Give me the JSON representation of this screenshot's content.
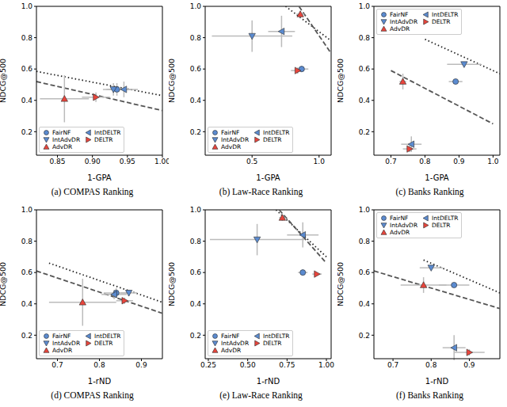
{
  "chart_data": [
    {
      "type": "scatter",
      "title": "(a) COMPAS Ranking",
      "x_label": "1-GPA",
      "y_label": "NDCG@500",
      "xlim": [
        0.82,
        1.0
      ],
      "xticks": [
        0.85,
        {
          "value": 0.9,
          "label": "0.90"
        },
        0.95,
        {
          "value": 1.0,
          "label": "1.00"
        }
      ],
      "ylim": [
        0.05,
        1.0
      ],
      "yticks": [
        0.2,
        0.4,
        0.6,
        0.8,
        {
          "value": 1.0,
          "label": "1.0"
        }
      ],
      "legend": "lower left",
      "series": [
        {
          "name": "FairNF",
          "color": "#5b8bd0",
          "marker": "circle",
          "points": [
            {
              "x": 0.935,
              "y": 0.47,
              "x_err": 0.02,
              "y_err": 0.04
            }
          ]
        },
        {
          "name": "IntAdvDR",
          "color": "#5b8bd0",
          "marker": "triangle_down",
          "points": [
            {
              "x": 0.93,
              "y": 0.47,
              "x_err": 0.01,
              "y_err": 0.04
            }
          ]
        },
        {
          "name": "AdvDR",
          "color": "#e8453c",
          "marker": "triangle_up",
          "points": [
            {
              "x": 0.86,
              "y": 0.41,
              "x_err": 0.035,
              "y_err": 0.15
            }
          ]
        },
        {
          "name": "IntDELTR",
          "color": "#5b8bd0",
          "marker": "triangle_left",
          "points": [
            {
              "x": 0.945,
              "y": 0.47,
              "x_err": 0.02,
              "y_err": 0.05
            }
          ]
        },
        {
          "name": "DELTR",
          "color": "#e8453c",
          "marker": "triangle_right",
          "points": [
            {
              "x": 0.905,
              "y": 0.42,
              "x_err": 0.02,
              "y_err": 0.03
            }
          ]
        }
      ],
      "lines": [
        {
          "line_style": "dotted",
          "color": "#222222",
          "x": [
            0.82,
            1.0
          ],
          "y": [
            0.585,
            0.43
          ]
        },
        {
          "line_style": "dashed",
          "color": "#555555",
          "x": [
            0.82,
            1.0
          ],
          "y": [
            0.52,
            0.335
          ]
        }
      ]
    },
    {
      "type": "scatter",
      "title": "(b) Law-Race Ranking",
      "x_label": "1-GPA",
      "y_label": "NDCG@500",
      "xlim": [
        0.15,
        1.09
      ],
      "xticks": [
        0.5,
        {
          "value": 1.0,
          "label": "1.0"
        }
      ],
      "ylim": [
        0.05,
        1.0
      ],
      "yticks": [
        0.2,
        0.4,
        0.6,
        0.8,
        {
          "value": 1.0,
          "label": "1.0"
        }
      ],
      "legend": "lower left",
      "series": [
        {
          "name": "FairNF",
          "color": "#5b8bd0",
          "marker": "circle",
          "points": [
            {
              "x": 0.87,
              "y": 0.6,
              "x_err": 0.05,
              "y_err": 0.02
            }
          ]
        },
        {
          "name": "IntAdvDR",
          "color": "#5b8bd0",
          "marker": "triangle_down",
          "points": [
            {
              "x": 0.5,
              "y": 0.81,
              "x_err": 0.3,
              "y_err": 0.1
            }
          ]
        },
        {
          "name": "AdvDR",
          "color": "#e8453c",
          "marker": "triangle_up",
          "points": [
            {
              "x": 0.86,
              "y": 0.95,
              "x_err": 0.03,
              "y_err": 0.02
            }
          ]
        },
        {
          "name": "IntDELTR",
          "color": "#5b8bd0",
          "marker": "triangle_left",
          "points": [
            {
              "x": 0.72,
              "y": 0.84,
              "x_err": 0.1,
              "y_err": 0.1
            }
          ]
        },
        {
          "name": "DELTR",
          "color": "#e8453c",
          "marker": "triangle_right",
          "points": [
            {
              "x": 0.84,
              "y": 0.59,
              "x_err": 0.05,
              "y_err": 0.02
            }
          ]
        }
      ],
      "lines": [
        {
          "line_style": "dotted",
          "color": "#222222",
          "x": [
            0.75,
            1.09
          ],
          "y": [
            1.0,
            0.78
          ]
        },
        {
          "line_style": "dashed",
          "color": "#555555",
          "x": [
            0.85,
            1.09
          ],
          "y": [
            1.0,
            0.7
          ]
        }
      ]
    },
    {
      "type": "scatter",
      "title": "(c) Banks Ranking",
      "x_label": "1-GPA",
      "y_label": "NDCG@500",
      "xlim": [
        0.65,
        1.02
      ],
      "xticks": [
        0.7,
        0.8,
        0.9,
        {
          "value": 1.0,
          "label": "1.0"
        }
      ],
      "ylim": [
        0.05,
        1.0
      ],
      "yticks": [
        0.2,
        0.4,
        0.6,
        0.8,
        {
          "value": 1.0,
          "label": "1.0"
        }
      ],
      "legend": "upper left",
      "series": [
        {
          "name": "FairNF",
          "color": "#5b8bd0",
          "marker": "circle",
          "points": [
            {
              "x": 0.89,
              "y": 0.52,
              "x_err": 0.02,
              "y_err": 0.01
            }
          ]
        },
        {
          "name": "IntAdvDR",
          "color": "#5b8bd0",
          "marker": "triangle_down",
          "points": [
            {
              "x": 0.915,
              "y": 0.63,
              "x_err": 0.05,
              "y_err": 0.01
            }
          ]
        },
        {
          "name": "AdvDR",
          "color": "#e8453c",
          "marker": "triangle_up",
          "points": [
            {
              "x": 0.735,
              "y": 0.52,
              "x_err": 0.01,
              "y_err": 0.05
            }
          ]
        },
        {
          "name": "IntDELTR",
          "color": "#5b8bd0",
          "marker": "triangle_left",
          "points": [
            {
              "x": 0.76,
              "y": 0.12,
              "x_err": 0.03,
              "y_err": 0.05
            }
          ]
        },
        {
          "name": "DELTR",
          "color": "#e8453c",
          "marker": "triangle_right",
          "points": [
            {
              "x": 0.755,
              "y": 0.09,
              "x_err": 0.02,
              "y_err": 0.02
            }
          ]
        }
      ],
      "lines": [
        {
          "line_style": "dotted",
          "color": "#222222",
          "x": [
            0.8,
            1.02
          ],
          "y": [
            0.79,
            0.57
          ]
        },
        {
          "line_style": "dashed",
          "color": "#555555",
          "x": [
            0.7,
            1.0
          ],
          "y": [
            0.59,
            0.25
          ]
        }
      ]
    },
    {
      "type": "scatter",
      "title": "(d) COMPAS Ranking",
      "x_label": "1-rND",
      "y_label": "NDCG@500",
      "xlim": [
        0.65,
        0.95
      ],
      "xticks": [
        0.7,
        0.8,
        0.9
      ],
      "ylim": [
        0.05,
        1.0
      ],
      "yticks": [
        0.2,
        0.4,
        0.6,
        0.8,
        {
          "value": 1.0,
          "label": "1.0"
        }
      ],
      "legend": "lower left",
      "series": [
        {
          "name": "FairNF",
          "color": "#5b8bd0",
          "marker": "circle",
          "points": [
            {
              "x": 0.84,
              "y": 0.47,
              "x_err": 0.03,
              "y_err": 0.03
            }
          ]
        },
        {
          "name": "IntAdvDR",
          "color": "#5b8bd0",
          "marker": "triangle_down",
          "points": [
            {
              "x": 0.87,
              "y": 0.47,
              "x_err": 0.02,
              "y_err": 0.02
            }
          ]
        },
        {
          "name": "AdvDR",
          "color": "#e8453c",
          "marker": "triangle_up",
          "points": [
            {
              "x": 0.76,
              "y": 0.41,
              "x_err": 0.08,
              "y_err": 0.15
            }
          ]
        },
        {
          "name": "IntDELTR",
          "color": "#5b8bd0",
          "marker": "triangle_left",
          "points": [
            {
              "x": 0.835,
              "y": 0.46,
              "x_err": 0.03,
              "y_err": 0.03
            }
          ]
        },
        {
          "name": "DELTR",
          "color": "#e8453c",
          "marker": "triangle_right",
          "points": [
            {
              "x": 0.86,
              "y": 0.42,
              "x_err": 0.02,
              "y_err": 0.02
            }
          ]
        }
      ],
      "lines": [
        {
          "line_style": "dotted",
          "color": "#222222",
          "x": [
            0.68,
            0.95
          ],
          "y": [
            0.66,
            0.41
          ]
        },
        {
          "line_style": "dashed",
          "color": "#555555",
          "x": [
            0.65,
            0.95
          ],
          "y": [
            0.61,
            0.34
          ]
        }
      ]
    },
    {
      "type": "scatter",
      "title": "(e) Law-Race Ranking",
      "x_label": "1-rND",
      "y_label": "NDCG@500",
      "xlim": [
        0.23,
        1.03
      ],
      "xticks": [
        0.25,
        {
          "value": 0.5,
          "label": "0.50"
        },
        0.75,
        {
          "value": 1.0,
          "label": "1.00"
        }
      ],
      "ylim": [
        0.05,
        1.0
      ],
      "yticks": [
        0.2,
        0.4,
        0.6,
        0.8,
        {
          "value": 1.0,
          "label": "1.0"
        }
      ],
      "legend": "lower left",
      "series": [
        {
          "name": "FairNF",
          "color": "#5b8bd0",
          "marker": "circle",
          "points": [
            {
              "x": 0.85,
              "y": 0.6,
              "x_err": 0.03,
              "y_err": 0.02
            }
          ]
        },
        {
          "name": "IntAdvDR",
          "color": "#5b8bd0",
          "marker": "triangle_down",
          "points": [
            {
              "x": 0.56,
              "y": 0.81,
              "x_err": 0.3,
              "y_err": 0.1
            }
          ]
        },
        {
          "name": "AdvDR",
          "color": "#e8453c",
          "marker": "triangle_up",
          "points": [
            {
              "x": 0.72,
              "y": 0.95,
              "x_err": 0.02,
              "y_err": 0.02
            }
          ]
        },
        {
          "name": "IntDELTR",
          "color": "#5b8bd0",
          "marker": "triangle_left",
          "points": [
            {
              "x": 0.85,
              "y": 0.84,
              "x_err": 0.1,
              "y_err": 0.08
            }
          ]
        },
        {
          "name": "DELTR",
          "color": "#e8453c",
          "marker": "triangle_right",
          "points": [
            {
              "x": 0.94,
              "y": 0.59,
              "x_err": 0.03,
              "y_err": 0.01
            }
          ]
        }
      ],
      "lines": [
        {
          "line_style": "dotted",
          "color": "#222222",
          "x": [
            0.68,
            1.0
          ],
          "y": [
            1.0,
            0.7
          ]
        },
        {
          "line_style": "dashed",
          "color": "#555555",
          "x": [
            0.7,
            1.0
          ],
          "y": [
            1.0,
            0.66
          ]
        }
      ]
    },
    {
      "type": "scatter",
      "title": "(f) Banks Ranking",
      "x_label": "1-rND",
      "y_label": "NDCG@500",
      "xlim": [
        0.65,
        0.98
      ],
      "xticks": [
        0.7,
        0.8,
        0.9
      ],
      "ylim": [
        0.05,
        1.0
      ],
      "yticks": [
        0.2,
        0.4,
        0.6,
        0.8,
        {
          "value": 1.0,
          "label": "1.0"
        }
      ],
      "legend": "upper left",
      "series": [
        {
          "name": "FairNF",
          "color": "#5b8bd0",
          "marker": "circle",
          "points": [
            {
              "x": 0.86,
              "y": 0.52,
              "x_err": 0.04,
              "y_err": 0.01
            }
          ]
        },
        {
          "name": "IntAdvDR",
          "color": "#5b8bd0",
          "marker": "triangle_down",
          "points": [
            {
              "x": 0.8,
              "y": 0.63,
              "x_err": 0.03,
              "y_err": 0.01
            }
          ]
        },
        {
          "name": "AdvDR",
          "color": "#e8453c",
          "marker": "triangle_up",
          "points": [
            {
              "x": 0.78,
              "y": 0.52,
              "x_err": 0.06,
              "y_err": 0.05
            }
          ]
        },
        {
          "name": "IntDELTR",
          "color": "#5b8bd0",
          "marker": "triangle_left",
          "points": [
            {
              "x": 0.86,
              "y": 0.12,
              "x_err": 0.03,
              "y_err": 0.08
            }
          ]
        },
        {
          "name": "DELTR",
          "color": "#e8453c",
          "marker": "triangle_right",
          "points": [
            {
              "x": 0.9,
              "y": 0.09,
              "x_err": 0.04,
              "y_err": 0.02
            }
          ]
        }
      ],
      "lines": [
        {
          "line_style": "dotted",
          "color": "#222222",
          "x": [
            0.78,
            0.98
          ],
          "y": [
            0.68,
            0.47
          ]
        },
        {
          "line_style": "dashed",
          "color": "#555555",
          "x": [
            0.65,
            0.98
          ],
          "y": [
            0.61,
            0.37
          ]
        }
      ]
    }
  ]
}
